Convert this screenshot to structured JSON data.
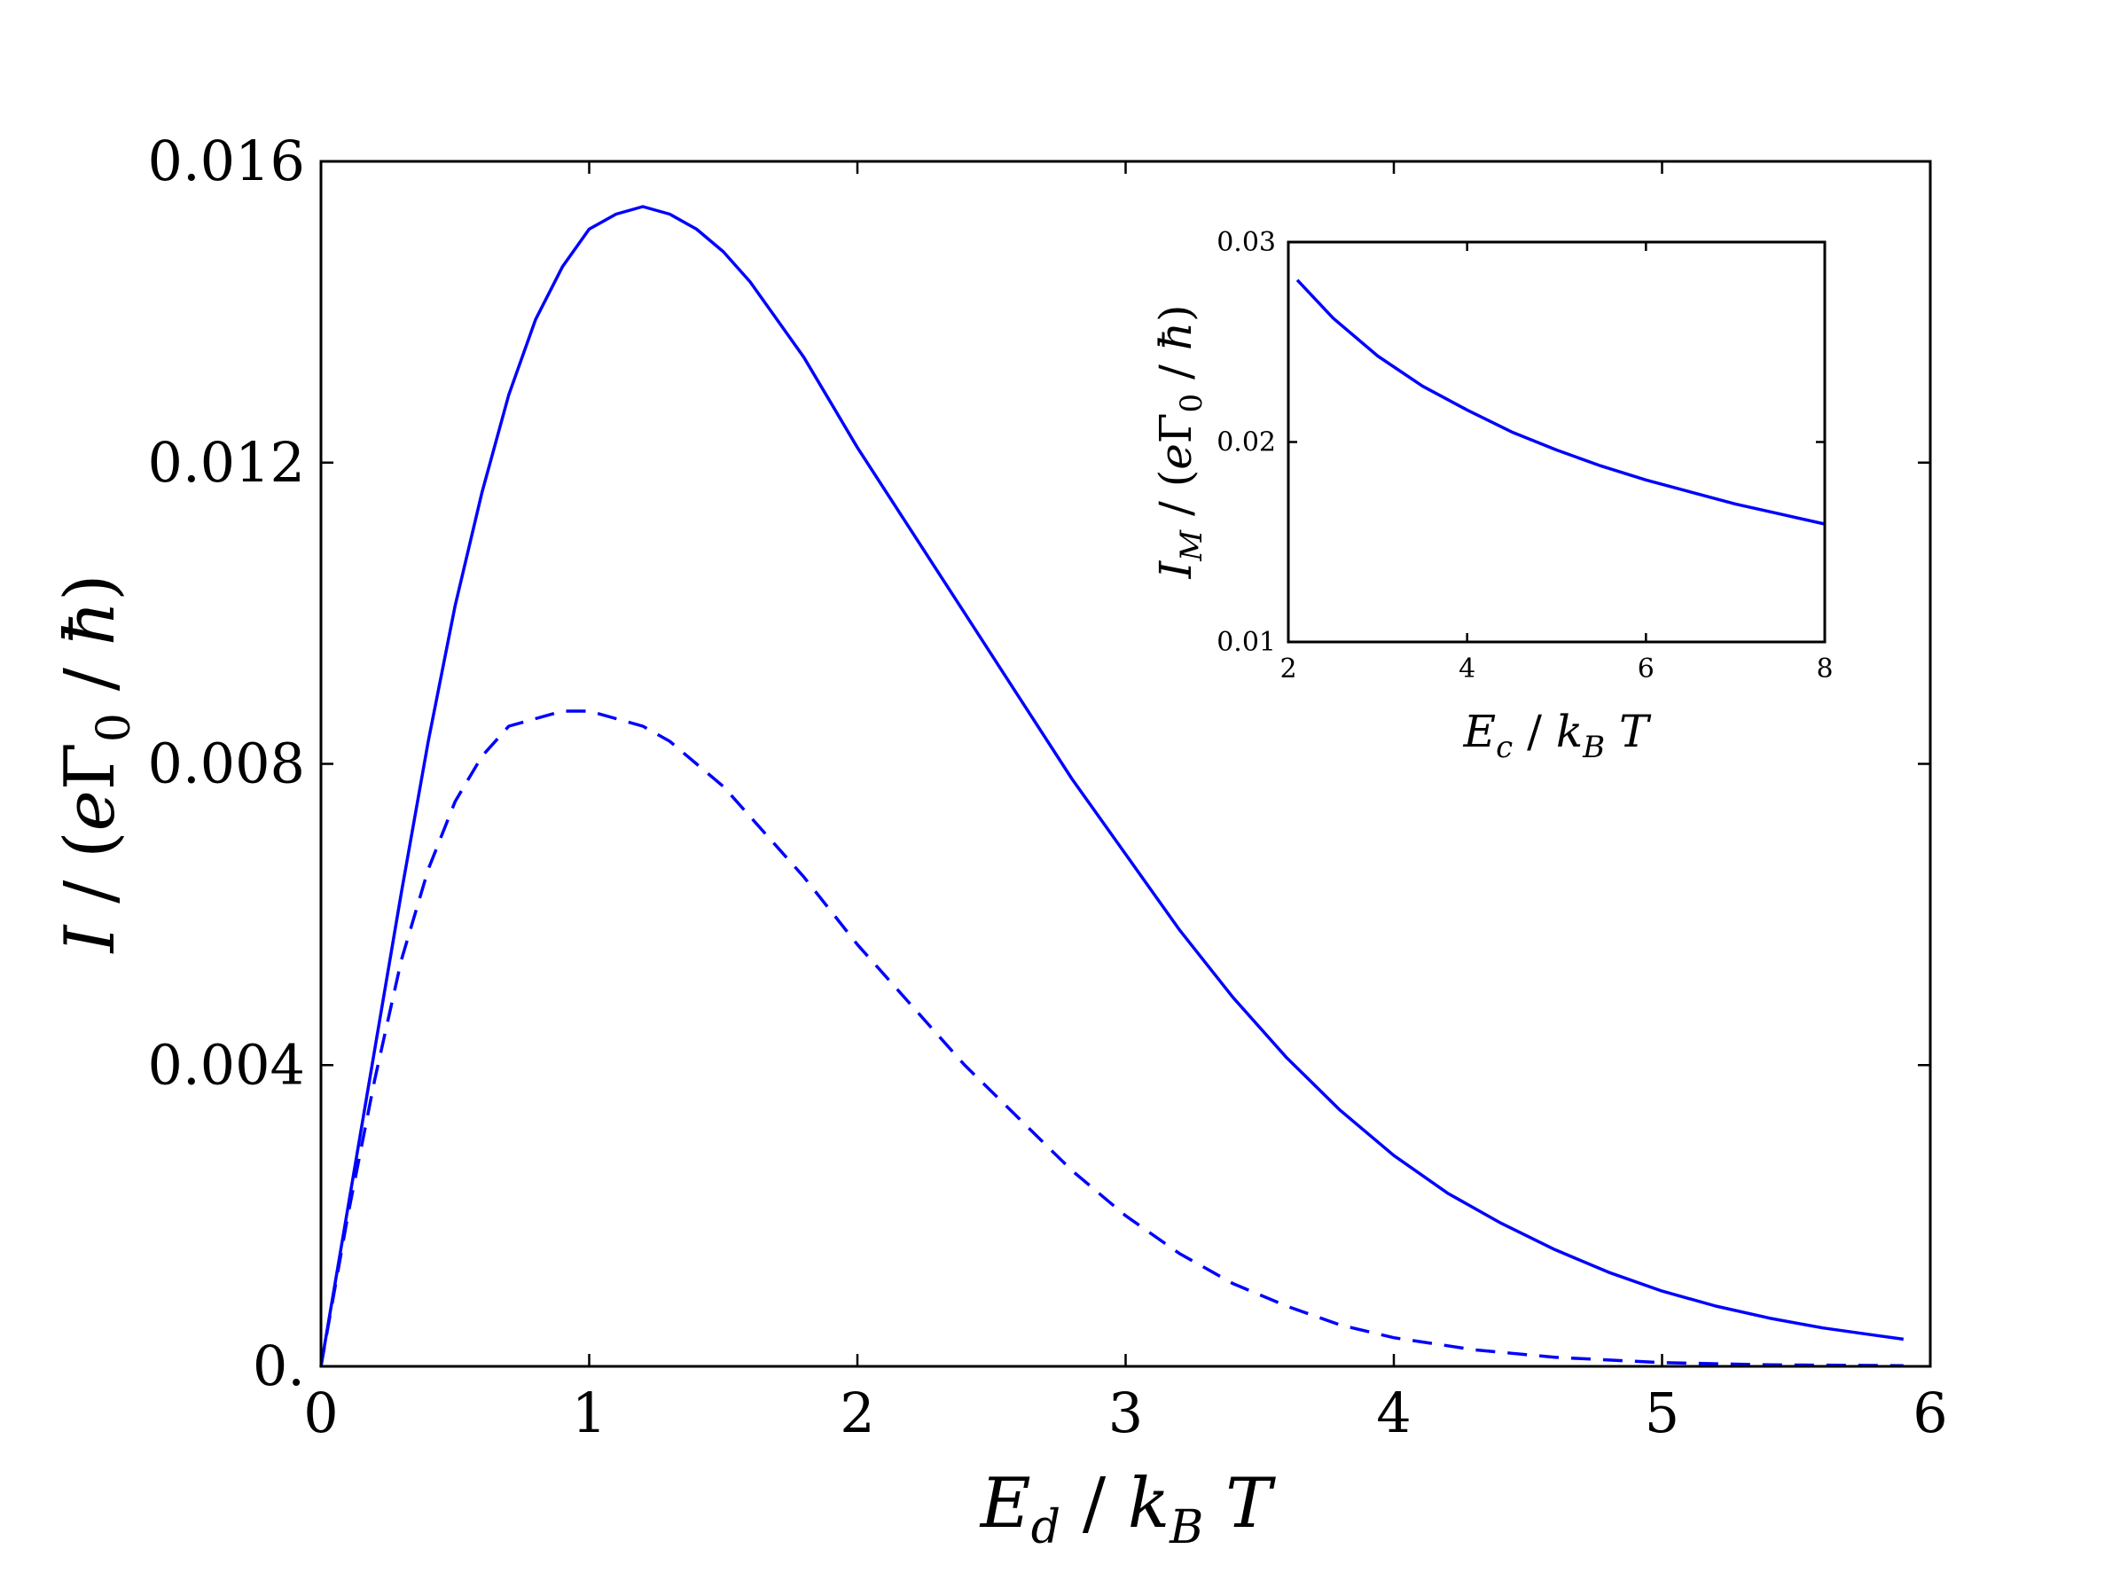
{
  "chart_data": [
    {
      "type": "line",
      "title": "",
      "xlabel": "E_d / k_B T",
      "ylabel": "I / (e Γ_0 / ħ)",
      "xlim": [
        0,
        6
      ],
      "ylim": [
        0,
        0.016
      ],
      "xticks": [
        0,
        1,
        2,
        3,
        4,
        5,
        6
      ],
      "xtick_labels": [
        "0",
        "1",
        "2",
        "3",
        "4",
        "5",
        "6"
      ],
      "yticks": [
        0,
        0.004,
        0.008,
        0.012,
        0.016
      ],
      "ytick_labels": [
        "0.",
        "0.004",
        "0.008",
        "0.012",
        "0.016"
      ],
      "grid": false,
      "legend": "none",
      "series": [
        {
          "style": "solid",
          "color": "#0000ff",
          "x": [
            0,
            0.1,
            0.2,
            0.3,
            0.4,
            0.5,
            0.6,
            0.7,
            0.8,
            0.9,
            1.0,
            1.1,
            1.2,
            1.3,
            1.4,
            1.5,
            1.6,
            1.7,
            1.8,
            1.9,
            2.0,
            2.2,
            2.4,
            2.6,
            2.8,
            3.0,
            3.2,
            3.4,
            3.6,
            3.8,
            4.0,
            4.2,
            4.4,
            4.6,
            4.8,
            5.0,
            5.2,
            5.4,
            5.6,
            5.8,
            5.9
          ],
          "y": [
            0,
            0.0021,
            0.0042,
            0.0063,
            0.0083,
            0.0101,
            0.0116,
            0.0129,
            0.0139,
            0.0146,
            0.0151,
            0.0153,
            0.0154,
            0.0153,
            0.0151,
            0.0148,
            0.0144,
            0.0139,
            0.0134,
            0.0128,
            0.0122,
            0.0111,
            0.01,
            0.0089,
            0.0078,
            0.0068,
            0.0058,
            0.0049,
            0.0041,
            0.0034,
            0.0028,
            0.0023,
            0.0019,
            0.00155,
            0.00125,
            0.001,
            0.0008,
            0.00064,
            0.00051,
            0.00041,
            0.00036
          ]
        },
        {
          "style": "dashed",
          "color": "#0000ff",
          "x": [
            0,
            0.1,
            0.2,
            0.3,
            0.4,
            0.5,
            0.6,
            0.7,
            0.8,
            0.9,
            1.0,
            1.1,
            1.2,
            1.3,
            1.4,
            1.5,
            1.6,
            1.8,
            2.0,
            2.2,
            2.4,
            2.6,
            2.8,
            3.0,
            3.2,
            3.4,
            3.6,
            3.8,
            4.0,
            4.3,
            4.6,
            5.0,
            5.4,
            5.9
          ],
          "y": [
            0,
            0.002,
            0.0038,
            0.0054,
            0.0066,
            0.0075,
            0.0081,
            0.0085,
            0.0086,
            0.0087,
            0.0087,
            0.0086,
            0.0085,
            0.0083,
            0.008,
            0.0077,
            0.0073,
            0.0065,
            0.0056,
            0.0048,
            0.004,
            0.0033,
            0.0026,
            0.002,
            0.0015,
            0.0011,
            0.0008,
            0.00055,
            0.00038,
            0.00022,
            0.00012,
            5e-05,
            2e-05,
            1e-05
          ]
        }
      ]
    },
    {
      "type": "line",
      "title": "",
      "xlabel": "E_c / k_B T",
      "ylabel": "I_M / (e Γ_0 / ħ)",
      "xlim": [
        2,
        8
      ],
      "ylim": [
        0.01,
        0.03
      ],
      "xticks": [
        2,
        4,
        6,
        8
      ],
      "xtick_labels": [
        "2",
        "4",
        "6",
        "8"
      ],
      "yticks": [
        0.01,
        0.02,
        0.03
      ],
      "ytick_labels": [
        "0.01",
        "0.02",
        "0.03"
      ],
      "grid": false,
      "legend": "none",
      "placement": "top-right inset",
      "series": [
        {
          "style": "solid",
          "color": "#0000ff",
          "x": [
            2.1,
            2.5,
            3.0,
            3.5,
            4.0,
            4.5,
            5.0,
            5.5,
            6.0,
            6.5,
            7.0,
            7.5,
            8.0
          ],
          "y": [
            0.0281,
            0.0262,
            0.0243,
            0.0228,
            0.0216,
            0.0205,
            0.0196,
            0.0188,
            0.0181,
            0.0175,
            0.0169,
            0.0164,
            0.0159
          ]
        }
      ]
    }
  ]
}
